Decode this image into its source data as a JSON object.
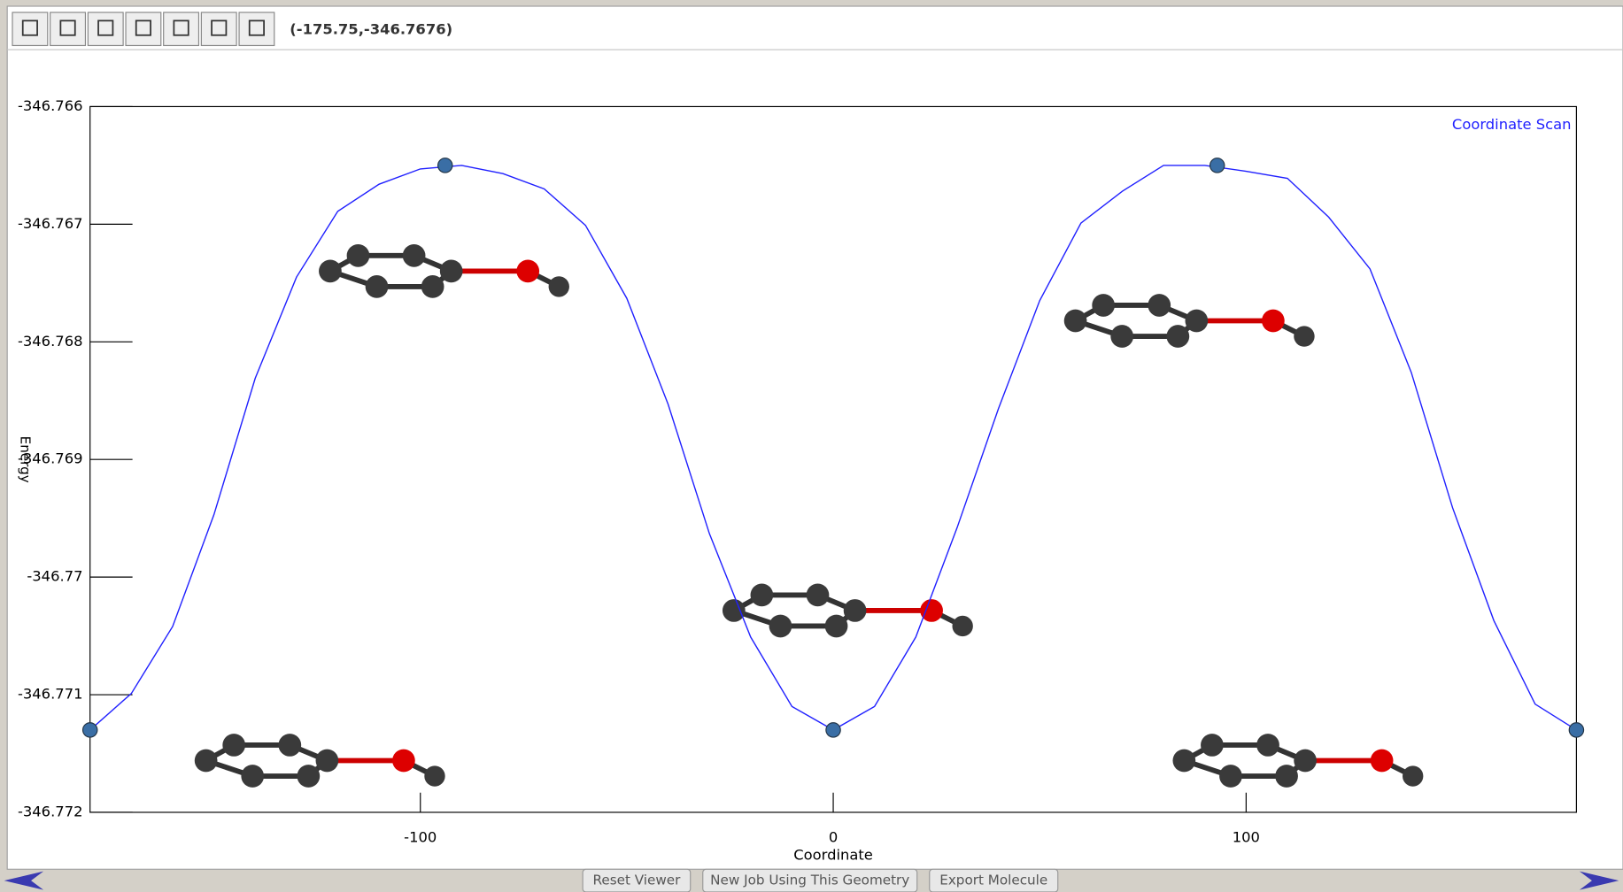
{
  "toolbar": {
    "coordinates": "(-175.75,-346.7676)"
  },
  "chart_data": {
    "type": "line",
    "xlabel": "Coordinate",
    "ylabel": "Energy",
    "x": [
      -180,
      -170,
      -160,
      -150,
      -140,
      -130,
      -120,
      -110,
      -100,
      -90,
      -80,
      -70,
      -60,
      -50,
      -40,
      -30,
      -20,
      -10,
      0,
      10,
      20,
      30,
      40,
      50,
      60,
      70,
      80,
      90,
      100,
      110,
      120,
      130,
      140,
      150,
      160,
      170,
      180
    ],
    "series": [
      {
        "name": "Coordinate Scan",
        "color": "#2020ff",
        "values": [
          -346.7713,
          -346.77099,
          -346.77042,
          -346.76947,
          -346.76831,
          -346.76745,
          -346.76689,
          -346.76666,
          -346.76653,
          -346.7665,
          -346.76657,
          -346.7667,
          -346.76701,
          -346.76763,
          -346.76853,
          -346.76963,
          -346.77051,
          -346.7711,
          -346.7713,
          -346.7711,
          -346.77051,
          -346.76958,
          -346.76857,
          -346.76765,
          -346.76699,
          -346.76672,
          -346.7665,
          -346.7665,
          -346.76655,
          -346.76661,
          -346.76694,
          -346.76738,
          -346.76826,
          -346.76941,
          -346.77037,
          -346.77108,
          -346.7713
        ]
      }
    ],
    "markers": {
      "color": "#3a6ea5",
      "x": [
        -180,
        -94,
        0,
        93,
        180
      ],
      "values": [
        -346.7713,
        -346.7665,
        -346.7713,
        -346.7665,
        -346.7713
      ]
    },
    "xlim": [
      -180,
      180
    ],
    "ylim": [
      -346.772,
      -346.766
    ],
    "xticks": [
      -100,
      0,
      100
    ],
    "yticks": [
      -346.772,
      -346.771,
      -346.77,
      -346.769,
      -346.768,
      -346.767,
      -346.766
    ]
  },
  "buttons": [
    "Reset Viewer",
    "New Job Using This Geometry",
    "Export Molecule"
  ]
}
